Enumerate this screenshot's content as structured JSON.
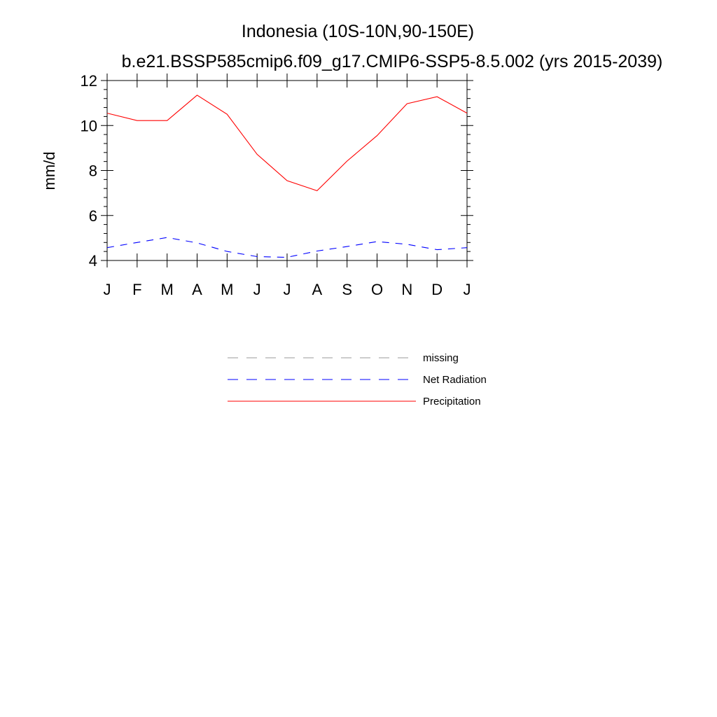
{
  "chart_data": {
    "type": "line",
    "title": "Indonesia (10S-10N,90-150E)",
    "subtitle": "b.e21.BSSP585cmip6.f09_g17.CMIP6-SSP5-8.5.002 (yrs 2015-2039)",
    "xlabel": "",
    "ylabel": "mm/d",
    "categories": [
      "J",
      "F",
      "M",
      "A",
      "M",
      "J",
      "J",
      "A",
      "S",
      "O",
      "N",
      "D",
      "J"
    ],
    "ylim": [
      4,
      12
    ],
    "yticks": [
      "4",
      "6",
      "8",
      "10",
      "12"
    ],
    "grid": false,
    "legend_position": "below",
    "series": [
      {
        "name": "Precipitation",
        "color": "#ff0000",
        "dash": "solid",
        "values": [
          10.55,
          10.22,
          10.22,
          11.35,
          10.5,
          8.72,
          7.55,
          7.1,
          8.42,
          9.55,
          10.97,
          11.28,
          10.55
        ]
      },
      {
        "name": "Net Radiation",
        "color": "#0000ff",
        "dash": "dashed",
        "values": [
          4.57,
          4.8,
          5.02,
          4.78,
          4.4,
          4.17,
          4.14,
          4.42,
          4.62,
          4.84,
          4.72,
          4.48,
          4.57
        ]
      }
    ],
    "legend": [
      {
        "label": "missing",
        "color": "#999999",
        "dash": "dashed"
      },
      {
        "label": "Net Radiation",
        "color": "#0000ff",
        "dash": "dashed"
      },
      {
        "label": "Precipitation",
        "color": "#ff0000",
        "dash": "solid"
      }
    ]
  }
}
